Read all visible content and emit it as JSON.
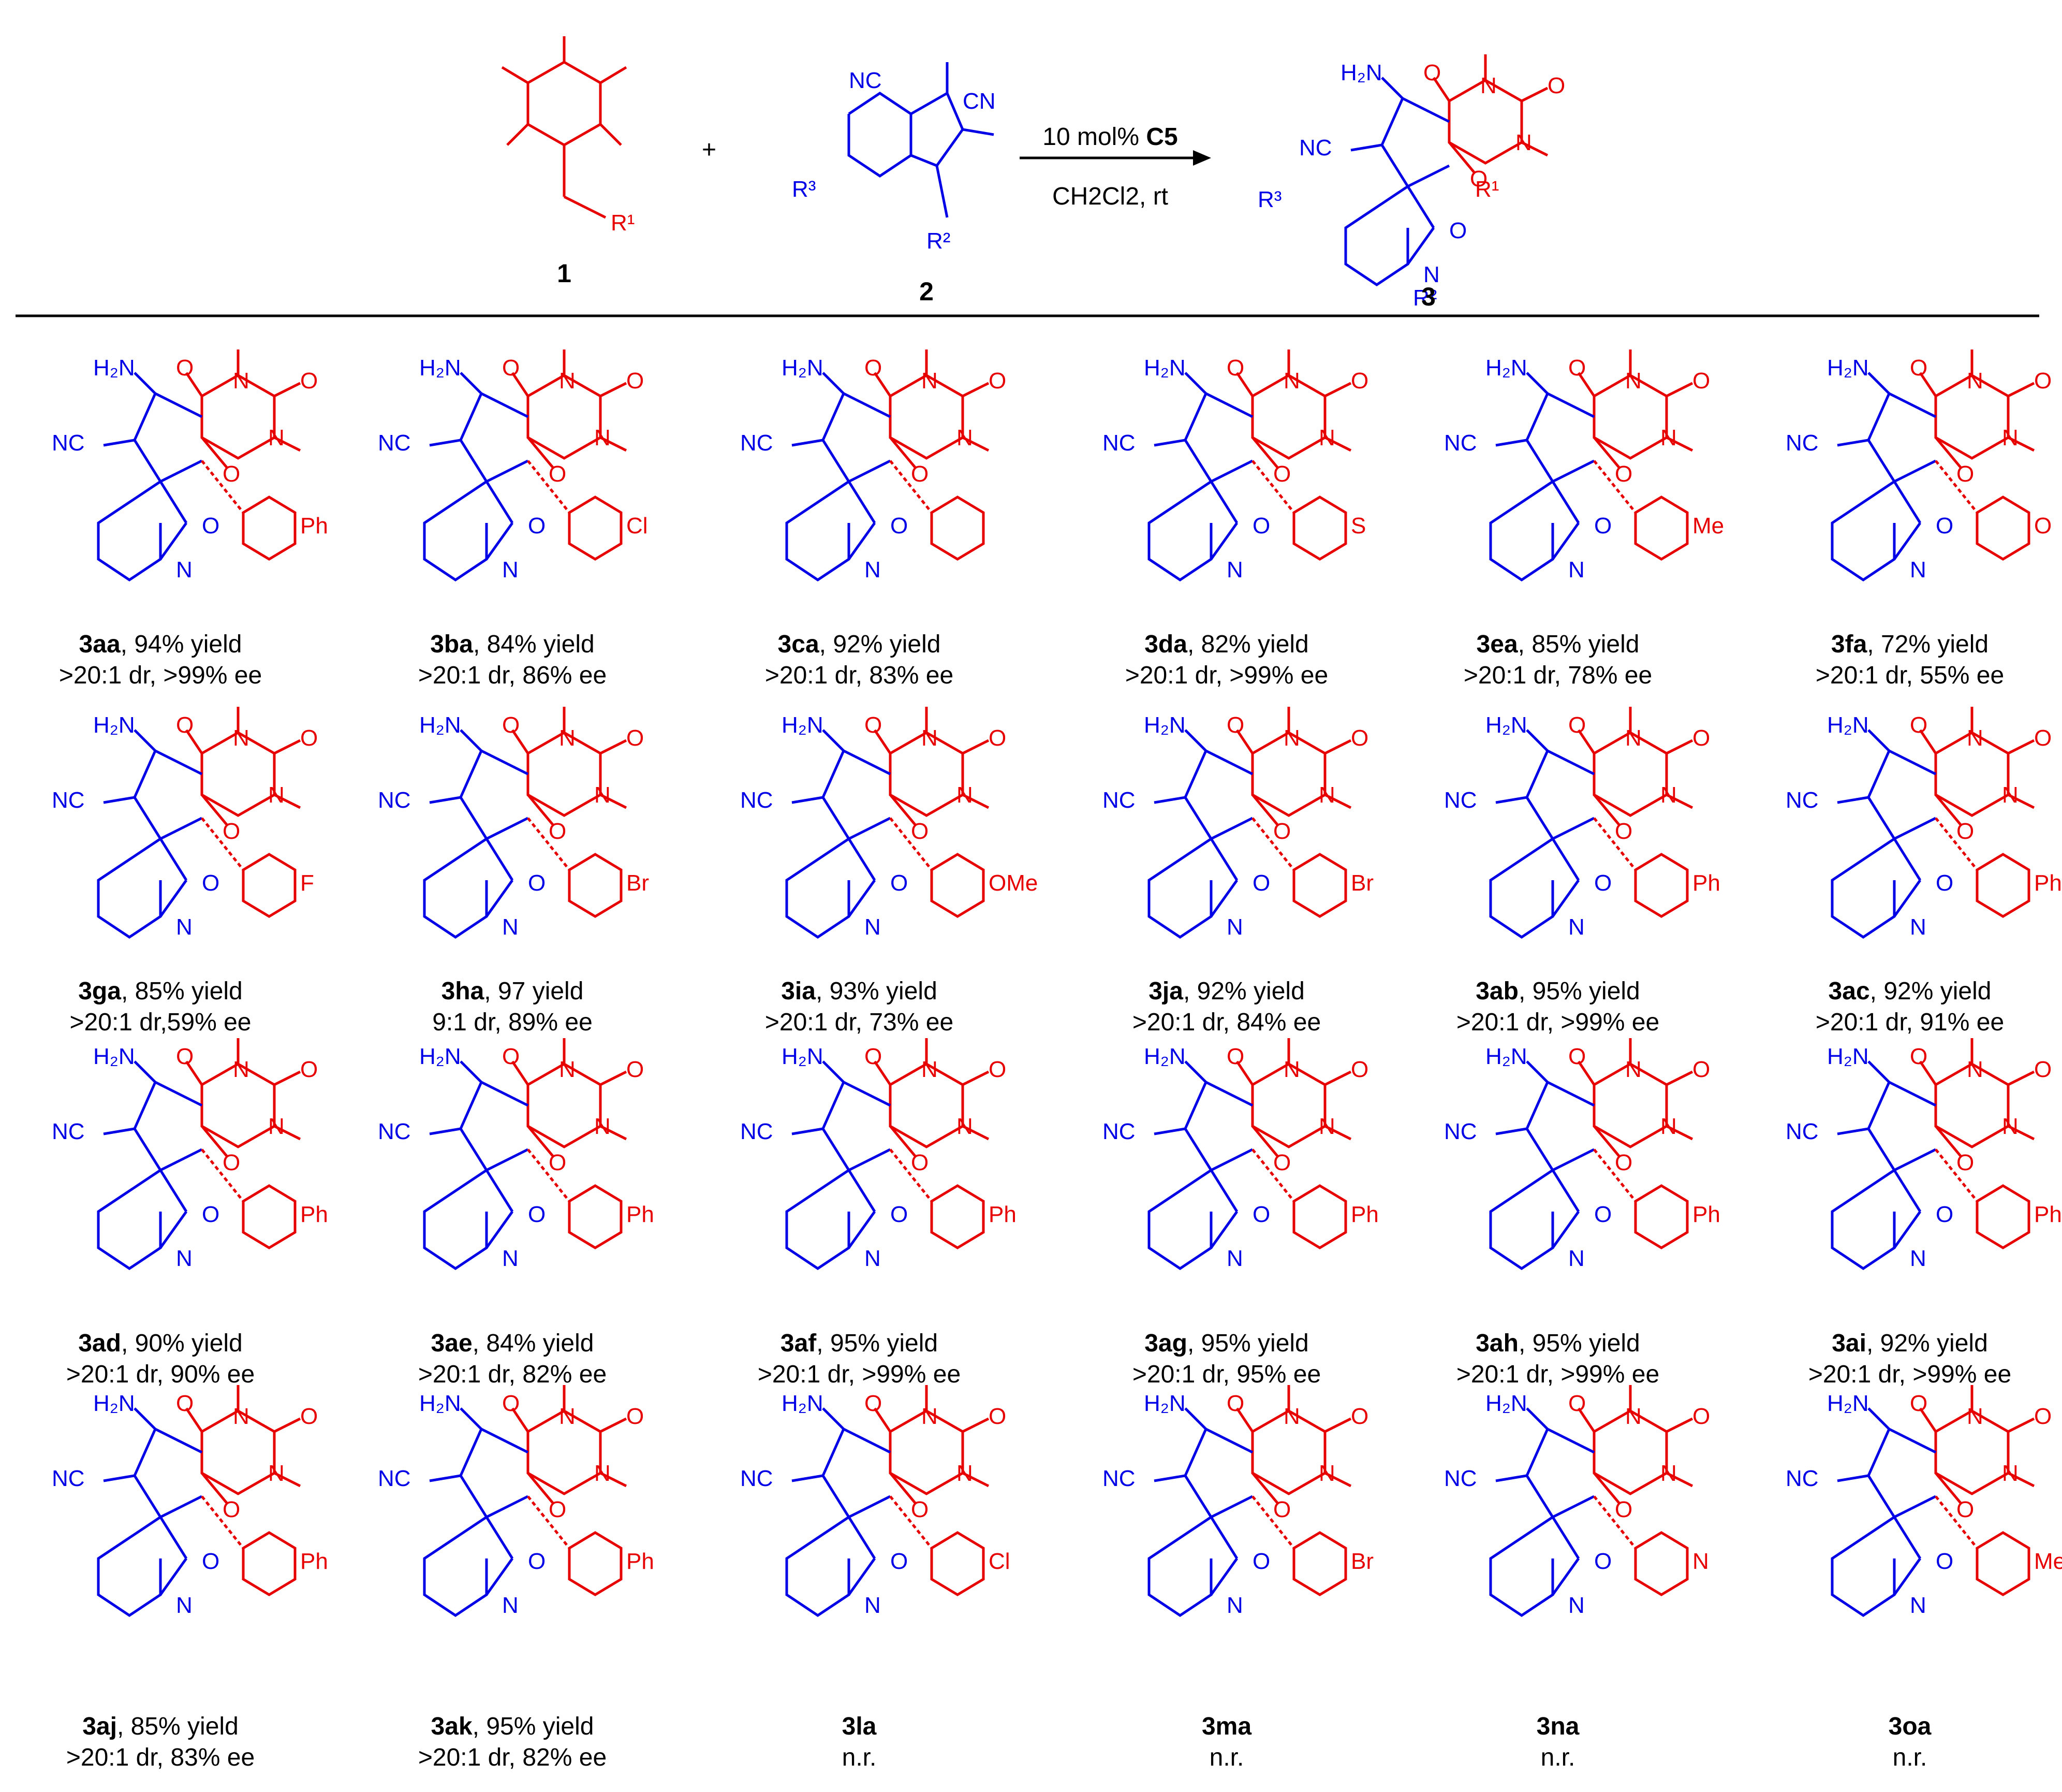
{
  "header": {
    "compound1_label": "1",
    "compound2_label": "2",
    "product_label": "3",
    "plus": "+",
    "arrow_above_prefix": "10 mol% ",
    "catalyst": "C5",
    "arrow_below_solvent": "CH2Cl2, rt"
  },
  "entries": [
    {
      "id": "3aa",
      "result": ", 94% yield",
      "line2": ">20:1 dr, >99% ee",
      "substituent": "Ph"
    },
    {
      "id": "3ba",
      "result": ", 84% yield",
      "line2": ">20:1 dr, 86% ee",
      "substituent": "Cl"
    },
    {
      "id": "3ca",
      "result": ", 92% yield",
      "line2": ">20:1 dr, 83% ee",
      "substituent": ""
    },
    {
      "id": "3da",
      "result": ", 82% yield",
      "line2": ">20:1 dr, >99% ee",
      "substituent": "S"
    },
    {
      "id": "3ea",
      "result": ", 85% yield",
      "line2": ">20:1 dr, 78% ee",
      "substituent": "Me"
    },
    {
      "id": "3fa",
      "result": ", 72% yield",
      "line2": ">20:1 dr, 55% ee",
      "substituent": "O"
    },
    {
      "id": "3ga",
      "result": ", 85% yield",
      "line2": ">20:1 dr,59% ee",
      "substituent": "F"
    },
    {
      "id": "3ha",
      "result": ", 97 yield",
      "line2": "9:1 dr, 89% ee",
      "substituent": "Br"
    },
    {
      "id": "3ia",
      "result": ", 93% yield",
      "line2": ">20:1 dr, 73% ee",
      "substituent": "OMe"
    },
    {
      "id": "3ja",
      "result": ", 92% yield",
      "line2": ">20:1 dr, 84% ee",
      "substituent": "Br"
    },
    {
      "id": "3ab",
      "result": ", 95% yield",
      "line2": ">20:1 dr, >99% ee",
      "substituent": "Ph"
    },
    {
      "id": "3ac",
      "result": ", 92% yield",
      "line2": ">20:1 dr, 91% ee",
      "substituent": "Ph"
    },
    {
      "id": "3ad",
      "result": ", 90% yield",
      "line2": ">20:1 dr, 90% ee",
      "substituent": "Ph"
    },
    {
      "id": "3ae",
      "result": ", 84% yield",
      "line2": ">20:1 dr, 82% ee",
      "substituent": "Ph"
    },
    {
      "id": "3af",
      "result": ", 95% yield",
      "line2": ">20:1 dr, >99% ee",
      "substituent": "Ph"
    },
    {
      "id": "3ag",
      "result": ", 95% yield",
      "line2": ">20:1 dr, 95% ee",
      "substituent": "Ph"
    },
    {
      "id": "3ah",
      "result": ", 95% yield",
      "line2": ">20:1 dr, >99% ee",
      "substituent": "Ph"
    },
    {
      "id": "3ai",
      "result": ", 92% yield",
      "line2": ">20:1 dr, >99% ee",
      "substituent": "Ph"
    },
    {
      "id": "3aj",
      "result": ", 85% yield",
      "line2": ">20:1 dr, 83% ee",
      "substituent": "Ph"
    },
    {
      "id": "3ak",
      "result": ", 95% yield",
      "line2": ">20:1 dr, 82% ee",
      "substituent": "Ph"
    },
    {
      "id": "3la",
      "result": "",
      "line2": "n.r.",
      "substituent": "Cl"
    },
    {
      "id": "3ma",
      "result": "",
      "line2": "n.r.",
      "substituent": "Br"
    },
    {
      "id": "3na",
      "result": "",
      "line2": "n.r.",
      "substituent": "N"
    },
    {
      "id": "3oa",
      "result": "",
      "line2": "n.r.",
      "substituent": "MeO"
    }
  ],
  "colors": {
    "indolinone": "#0000e6",
    "barbiturate": "#e60000",
    "text": "#000000"
  }
}
